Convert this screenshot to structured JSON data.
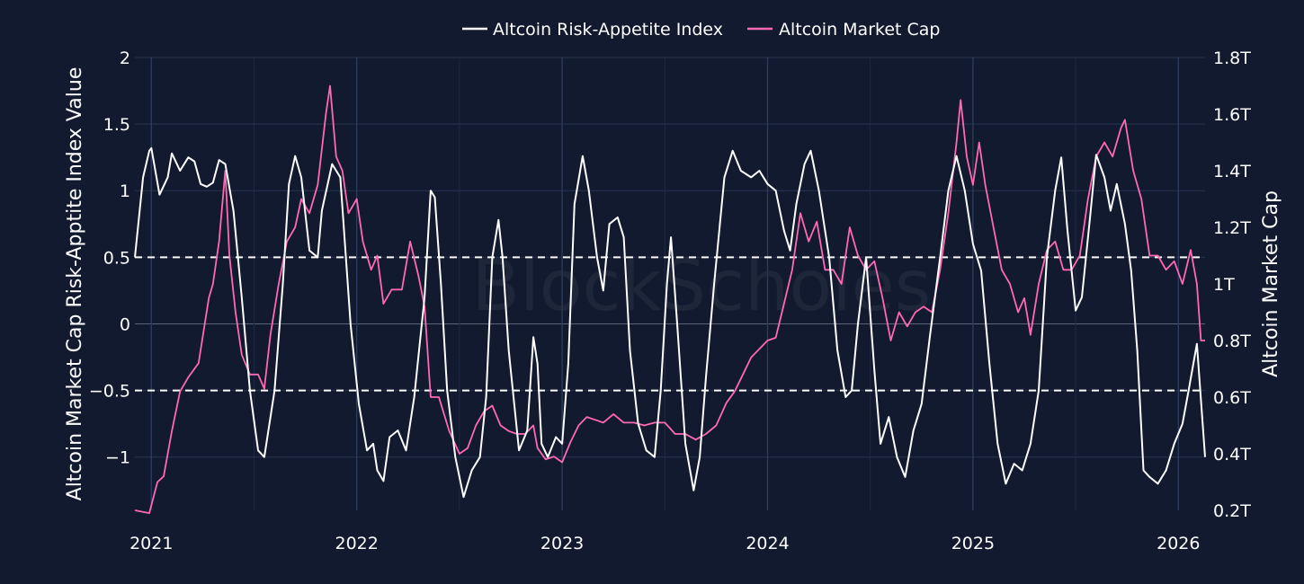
{
  "chart_data": {
    "type": "line",
    "watermark": "BlockScholes",
    "x_ticks": [
      "2021",
      "2022",
      "2023",
      "2024",
      "2025",
      "2026"
    ],
    "x_range": [
      2020.92,
      2026.13
    ],
    "left_axis": {
      "title": "Altcoin Market Cap Risk-Apptite Index Value",
      "ylim": [
        -1.4,
        2.0
      ],
      "ticks": [
        -1,
        -0.5,
        0,
        0.5,
        1,
        1.5,
        2
      ],
      "tick_labels": [
        "−1",
        "−0.5",
        "0",
        "0.5",
        "1",
        "1.5",
        "2"
      ]
    },
    "right_axis": {
      "title": "Altcoin Market Cap",
      "ylim": [
        0.2,
        1.8
      ],
      "ticks": [
        0.2,
        0.4,
        0.6,
        0.8,
        1.0,
        1.2,
        1.4,
        1.6,
        1.8
      ],
      "tick_labels": [
        "0.2T",
        "0.4T",
        "0.6T",
        "0.8T",
        "1T",
        "1.2T",
        "1.4T",
        "1.6T",
        "1.8T"
      ],
      "unit": "T"
    },
    "reference_lines": [
      0.5,
      -0.5
    ],
    "series": [
      {
        "name": "Altcoin Risk-Appetite Index",
        "axis": "left",
        "color": "#ffffff",
        "points": [
          [
            2020.92,
            0.5
          ],
          [
            2020.96,
            1.1
          ],
          [
            2020.99,
            1.3
          ],
          [
            2021.0,
            1.32
          ],
          [
            2021.04,
            0.97
          ],
          [
            2021.08,
            1.1
          ],
          [
            2021.1,
            1.28
          ],
          [
            2021.14,
            1.15
          ],
          [
            2021.18,
            1.25
          ],
          [
            2021.21,
            1.22
          ],
          [
            2021.24,
            1.05
          ],
          [
            2021.27,
            1.03
          ],
          [
            2021.3,
            1.06
          ],
          [
            2021.33,
            1.23
          ],
          [
            2021.36,
            1.2
          ],
          [
            2021.4,
            0.85
          ],
          [
            2021.44,
            0.2
          ],
          [
            2021.48,
            -0.5
          ],
          [
            2021.52,
            -0.95
          ],
          [
            2021.55,
            -1.0
          ],
          [
            2021.6,
            -0.5
          ],
          [
            2021.64,
            0.3
          ],
          [
            2021.67,
            1.05
          ],
          [
            2021.7,
            1.26
          ],
          [
            2021.73,
            1.1
          ],
          [
            2021.77,
            0.55
          ],
          [
            2021.81,
            0.5
          ],
          [
            2021.83,
            0.85
          ],
          [
            2021.88,
            1.2
          ],
          [
            2021.92,
            1.1
          ],
          [
            2021.97,
            0.0
          ],
          [
            2022.01,
            -0.6
          ],
          [
            2022.05,
            -0.95
          ],
          [
            2022.08,
            -0.9
          ],
          [
            2022.1,
            -1.1
          ],
          [
            2022.13,
            -1.18
          ],
          [
            2022.16,
            -0.85
          ],
          [
            2022.2,
            -0.8
          ],
          [
            2022.24,
            -0.95
          ],
          [
            2022.28,
            -0.55
          ],
          [
            2022.33,
            0.2
          ],
          [
            2022.36,
            1.0
          ],
          [
            2022.38,
            0.95
          ],
          [
            2022.41,
            0.3
          ],
          [
            2022.44,
            -0.5
          ],
          [
            2022.48,
            -1.0
          ],
          [
            2022.52,
            -1.3
          ],
          [
            2022.56,
            -1.1
          ],
          [
            2022.6,
            -1.0
          ],
          [
            2022.63,
            -0.55
          ],
          [
            2022.66,
            0.5
          ],
          [
            2022.69,
            0.78
          ],
          [
            2022.71,
            0.5
          ],
          [
            2022.74,
            -0.2
          ],
          [
            2022.79,
            -0.95
          ],
          [
            2022.83,
            -0.8
          ],
          [
            2022.86,
            -0.1
          ],
          [
            2022.88,
            -0.3
          ],
          [
            2022.9,
            -0.9
          ],
          [
            2022.93,
            -1.0
          ],
          [
            2022.97,
            -0.85
          ],
          [
            2023.0,
            -0.9
          ],
          [
            2023.03,
            -0.3
          ],
          [
            2023.06,
            0.9
          ],
          [
            2023.1,
            1.26
          ],
          [
            2023.13,
            1.0
          ],
          [
            2023.17,
            0.5
          ],
          [
            2023.2,
            0.25
          ],
          [
            2023.23,
            0.75
          ],
          [
            2023.27,
            0.8
          ],
          [
            2023.3,
            0.65
          ],
          [
            2023.33,
            -0.2
          ],
          [
            2023.37,
            -0.75
          ],
          [
            2023.41,
            -0.95
          ],
          [
            2023.45,
            -1.0
          ],
          [
            2023.48,
            -0.5
          ],
          [
            2023.51,
            0.3
          ],
          [
            2023.53,
            0.65
          ],
          [
            2023.56,
            0.0
          ],
          [
            2023.6,
            -0.9
          ],
          [
            2023.64,
            -1.25
          ],
          [
            2023.67,
            -1.0
          ],
          [
            2023.7,
            -0.4
          ],
          [
            2023.74,
            0.3
          ],
          [
            2023.79,
            1.1
          ],
          [
            2023.83,
            1.3
          ],
          [
            2023.87,
            1.15
          ],
          [
            2023.92,
            1.1
          ],
          [
            2023.96,
            1.15
          ],
          [
            2024.0,
            1.05
          ],
          [
            2024.04,
            1.0
          ],
          [
            2024.08,
            0.7
          ],
          [
            2024.11,
            0.55
          ],
          [
            2024.14,
            0.9
          ],
          [
            2024.18,
            1.2
          ],
          [
            2024.21,
            1.3
          ],
          [
            2024.25,
            1.0
          ],
          [
            2024.3,
            0.5
          ],
          [
            2024.34,
            -0.2
          ],
          [
            2024.38,
            -0.55
          ],
          [
            2024.41,
            -0.5
          ],
          [
            2024.44,
            0.0
          ],
          [
            2024.48,
            0.5
          ],
          [
            2024.52,
            -0.35
          ],
          [
            2024.55,
            -0.9
          ],
          [
            2024.59,
            -0.7
          ],
          [
            2024.63,
            -1.0
          ],
          [
            2024.67,
            -1.15
          ],
          [
            2024.71,
            -0.8
          ],
          [
            2024.75,
            -0.6
          ],
          [
            2024.79,
            -0.1
          ],
          [
            2024.84,
            0.5
          ],
          [
            2024.88,
            1.0
          ],
          [
            2024.92,
            1.26
          ],
          [
            2024.96,
            1.0
          ],
          [
            2025.0,
            0.6
          ],
          [
            2025.04,
            0.4
          ],
          [
            2025.08,
            -0.3
          ],
          [
            2025.12,
            -0.9
          ],
          [
            2025.16,
            -1.2
          ],
          [
            2025.2,
            -1.05
          ],
          [
            2025.24,
            -1.1
          ],
          [
            2025.28,
            -0.9
          ],
          [
            2025.32,
            -0.5
          ],
          [
            2025.36,
            0.5
          ],
          [
            2025.4,
            1.0
          ],
          [
            2025.43,
            1.25
          ],
          [
            2025.46,
            0.7
          ],
          [
            2025.5,
            0.1
          ],
          [
            2025.53,
            0.2
          ],
          [
            2025.57,
            0.8
          ],
          [
            2025.6,
            1.27
          ],
          [
            2025.64,
            1.1
          ],
          [
            2025.67,
            0.85
          ],
          [
            2025.7,
            1.05
          ],
          [
            2025.74,
            0.75
          ],
          [
            2025.77,
            0.4
          ],
          [
            2025.8,
            -0.2
          ],
          [
            2025.83,
            -1.1
          ],
          [
            2025.86,
            -1.15
          ],
          [
            2025.9,
            -1.2
          ],
          [
            2025.94,
            -1.1
          ],
          [
            2025.98,
            -0.9
          ],
          [
            2026.02,
            -0.75
          ],
          [
            2026.05,
            -0.5
          ],
          [
            2026.09,
            -0.15
          ],
          [
            2026.13,
            -1.0
          ]
        ]
      },
      {
        "name": "Altcoin Market Cap",
        "axis": "right",
        "color": "#ff69b4",
        "points": [
          [
            2020.92,
            0.2
          ],
          [
            2020.99,
            0.19
          ],
          [
            2021.03,
            0.3
          ],
          [
            2021.06,
            0.32
          ],
          [
            2021.1,
            0.48
          ],
          [
            2021.14,
            0.62
          ],
          [
            2021.18,
            0.67
          ],
          [
            2021.23,
            0.72
          ],
          [
            2021.28,
            0.95
          ],
          [
            2021.3,
            1.0
          ],
          [
            2021.33,
            1.15
          ],
          [
            2021.36,
            1.4
          ],
          [
            2021.38,
            1.1
          ],
          [
            2021.41,
            0.9
          ],
          [
            2021.44,
            0.75
          ],
          [
            2021.48,
            0.68
          ],
          [
            2021.52,
            0.68
          ],
          [
            2021.55,
            0.63
          ],
          [
            2021.58,
            0.82
          ],
          [
            2021.62,
            1.0
          ],
          [
            2021.66,
            1.15
          ],
          [
            2021.7,
            1.2
          ],
          [
            2021.73,
            1.3
          ],
          [
            2021.77,
            1.25
          ],
          [
            2021.81,
            1.35
          ],
          [
            2021.85,
            1.6
          ],
          [
            2021.87,
            1.7
          ],
          [
            2021.9,
            1.45
          ],
          [
            2021.93,
            1.4
          ],
          [
            2021.96,
            1.25
          ],
          [
            2022.0,
            1.3
          ],
          [
            2022.03,
            1.15
          ],
          [
            2022.07,
            1.05
          ],
          [
            2022.1,
            1.1
          ],
          [
            2022.13,
            0.93
          ],
          [
            2022.17,
            0.98
          ],
          [
            2022.22,
            0.98
          ],
          [
            2022.26,
            1.15
          ],
          [
            2022.3,
            1.03
          ],
          [
            2022.33,
            0.92
          ],
          [
            2022.36,
            0.6
          ],
          [
            2022.4,
            0.6
          ],
          [
            2022.45,
            0.48
          ],
          [
            2022.5,
            0.4
          ],
          [
            2022.54,
            0.42
          ],
          [
            2022.58,
            0.5
          ],
          [
            2022.62,
            0.55
          ],
          [
            2022.66,
            0.57
          ],
          [
            2022.7,
            0.5
          ],
          [
            2022.74,
            0.48
          ],
          [
            2022.78,
            0.47
          ],
          [
            2022.82,
            0.47
          ],
          [
            2022.86,
            0.5
          ],
          [
            2022.88,
            0.42
          ],
          [
            2022.92,
            0.38
          ],
          [
            2022.96,
            0.39
          ],
          [
            2023.0,
            0.37
          ],
          [
            2023.04,
            0.44
          ],
          [
            2023.08,
            0.5
          ],
          [
            2023.12,
            0.53
          ],
          [
            2023.16,
            0.52
          ],
          [
            2023.2,
            0.51
          ],
          [
            2023.25,
            0.54
          ],
          [
            2023.3,
            0.51
          ],
          [
            2023.35,
            0.51
          ],
          [
            2023.4,
            0.5
          ],
          [
            2023.45,
            0.51
          ],
          [
            2023.5,
            0.51
          ],
          [
            2023.55,
            0.47
          ],
          [
            2023.6,
            0.47
          ],
          [
            2023.65,
            0.45
          ],
          [
            2023.7,
            0.47
          ],
          [
            2023.75,
            0.5
          ],
          [
            2023.8,
            0.58
          ],
          [
            2023.84,
            0.62
          ],
          [
            2023.88,
            0.68
          ],
          [
            2023.92,
            0.74
          ],
          [
            2023.96,
            0.77
          ],
          [
            2024.0,
            0.8
          ],
          [
            2024.04,
            0.81
          ],
          [
            2024.08,
            0.93
          ],
          [
            2024.12,
            1.05
          ],
          [
            2024.16,
            1.25
          ],
          [
            2024.2,
            1.15
          ],
          [
            2024.24,
            1.22
          ],
          [
            2024.28,
            1.05
          ],
          [
            2024.32,
            1.05
          ],
          [
            2024.36,
            1.0
          ],
          [
            2024.4,
            1.2
          ],
          [
            2024.44,
            1.1
          ],
          [
            2024.48,
            1.05
          ],
          [
            2024.52,
            1.08
          ],
          [
            2024.56,
            0.95
          ],
          [
            2024.6,
            0.8
          ],
          [
            2024.64,
            0.9
          ],
          [
            2024.68,
            0.85
          ],
          [
            2024.72,
            0.9
          ],
          [
            2024.76,
            0.92
          ],
          [
            2024.8,
            0.9
          ],
          [
            2024.84,
            1.05
          ],
          [
            2024.88,
            1.25
          ],
          [
            2024.92,
            1.5
          ],
          [
            2024.94,
            1.65
          ],
          [
            2024.97,
            1.45
          ],
          [
            2025.0,
            1.35
          ],
          [
            2025.03,
            1.5
          ],
          [
            2025.06,
            1.35
          ],
          [
            2025.1,
            1.2
          ],
          [
            2025.14,
            1.05
          ],
          [
            2025.18,
            1.0
          ],
          [
            2025.22,
            0.9
          ],
          [
            2025.25,
            0.95
          ],
          [
            2025.28,
            0.82
          ],
          [
            2025.32,
            1.0
          ],
          [
            2025.36,
            1.12
          ],
          [
            2025.4,
            1.15
          ],
          [
            2025.44,
            1.05
          ],
          [
            2025.48,
            1.05
          ],
          [
            2025.52,
            1.1
          ],
          [
            2025.56,
            1.3
          ],
          [
            2025.6,
            1.45
          ],
          [
            2025.64,
            1.5
          ],
          [
            2025.68,
            1.45
          ],
          [
            2025.72,
            1.55
          ],
          [
            2025.74,
            1.58
          ],
          [
            2025.78,
            1.4
          ],
          [
            2025.82,
            1.3
          ],
          [
            2025.86,
            1.1
          ],
          [
            2025.9,
            1.1
          ],
          [
            2025.94,
            1.05
          ],
          [
            2025.98,
            1.08
          ],
          [
            2026.02,
            1.0
          ],
          [
            2026.06,
            1.12
          ],
          [
            2026.09,
            1.0
          ],
          [
            2026.11,
            0.8
          ],
          [
            2026.13,
            0.8
          ]
        ]
      }
    ]
  }
}
